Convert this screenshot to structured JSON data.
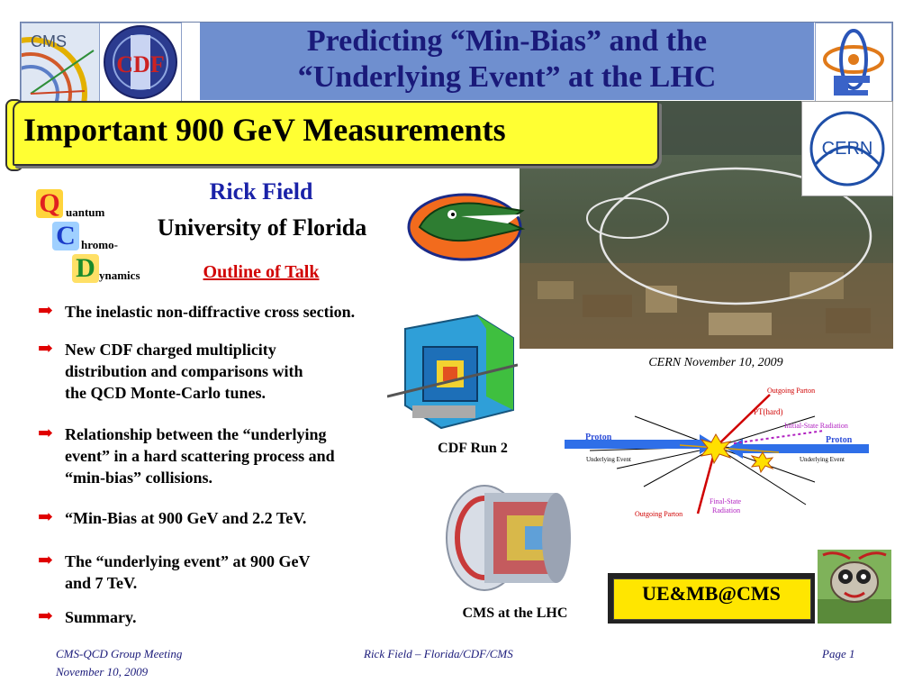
{
  "header": {
    "title_line1": "Predicting “Min-Bias” and the",
    "title_line2": "“Underlying Event” at the LHC",
    "logo_cms": "CMS",
    "logo_cdf": "CDF"
  },
  "banner": {
    "text": "Important 900 GeV Measurements"
  },
  "speaker": {
    "name": "Rick Field",
    "institution": "University of Florida",
    "outline_label": "Outline of Talk"
  },
  "qcd_logo": {
    "letters": [
      "Q",
      "C",
      "D"
    ],
    "words": [
      "uantum",
      "hromo-",
      "ynamics"
    ]
  },
  "bullets": [
    {
      "lines": [
        "The inelastic non-diffractive cross section."
      ]
    },
    {
      "lines": [
        "New CDF charged multiplicity",
        "distribution and comparisons with",
        "the QCD Monte-Carlo tunes."
      ]
    },
    {
      "lines": [
        "Relationship between the “underlying",
        "event” in a hard scattering process and",
        "“min-bias” collisions."
      ]
    },
    {
      "lines": [
        "“Min-Bias at 900 GeV and 2.2 TeV."
      ]
    },
    {
      "lines": [
        "The “underlying event” at 900 GeV",
        "and 7 TeV."
      ]
    },
    {
      "lines": [
        "Summary."
      ]
    }
  ],
  "photo": {
    "caption": "CERN  November 10, 2009",
    "cern_logo": "CERN"
  },
  "images": {
    "cdf_caption": "CDF Run 2",
    "cms_caption": "CMS at the LHC"
  },
  "diagram": {
    "outgoing_parton_top": "Outgoing Parton",
    "pt_hard": "PT(hard)",
    "initial_state": "Initial-State Radiation",
    "proton_left": "Proton",
    "proton_right": "Proton",
    "underlying_left": "Underlying Event",
    "underlying_right": "Underlying Event",
    "final_state_1": "Final-State",
    "final_state_2": "Radiation",
    "outgoing_parton_bottom": "Outgoing Parton"
  },
  "badge": {
    "text": "UE&MB@CMS"
  },
  "footer": {
    "left_line1": "CMS-QCD Group Meeting",
    "left_line2": "November 10, 2009",
    "center": "Rick Field – Florida/CDF/CMS",
    "right": "Page 1"
  },
  "colors": {
    "title_band": "#6f8fcf",
    "title_text": "#1a1a7a",
    "banner": "#ffff33",
    "name": "#1a22a8",
    "outline": "#d10000",
    "bullet_arrow": "#e00000",
    "badge": "#ffe600"
  },
  "icons": {
    "bullet": "right-arrow-icon"
  }
}
